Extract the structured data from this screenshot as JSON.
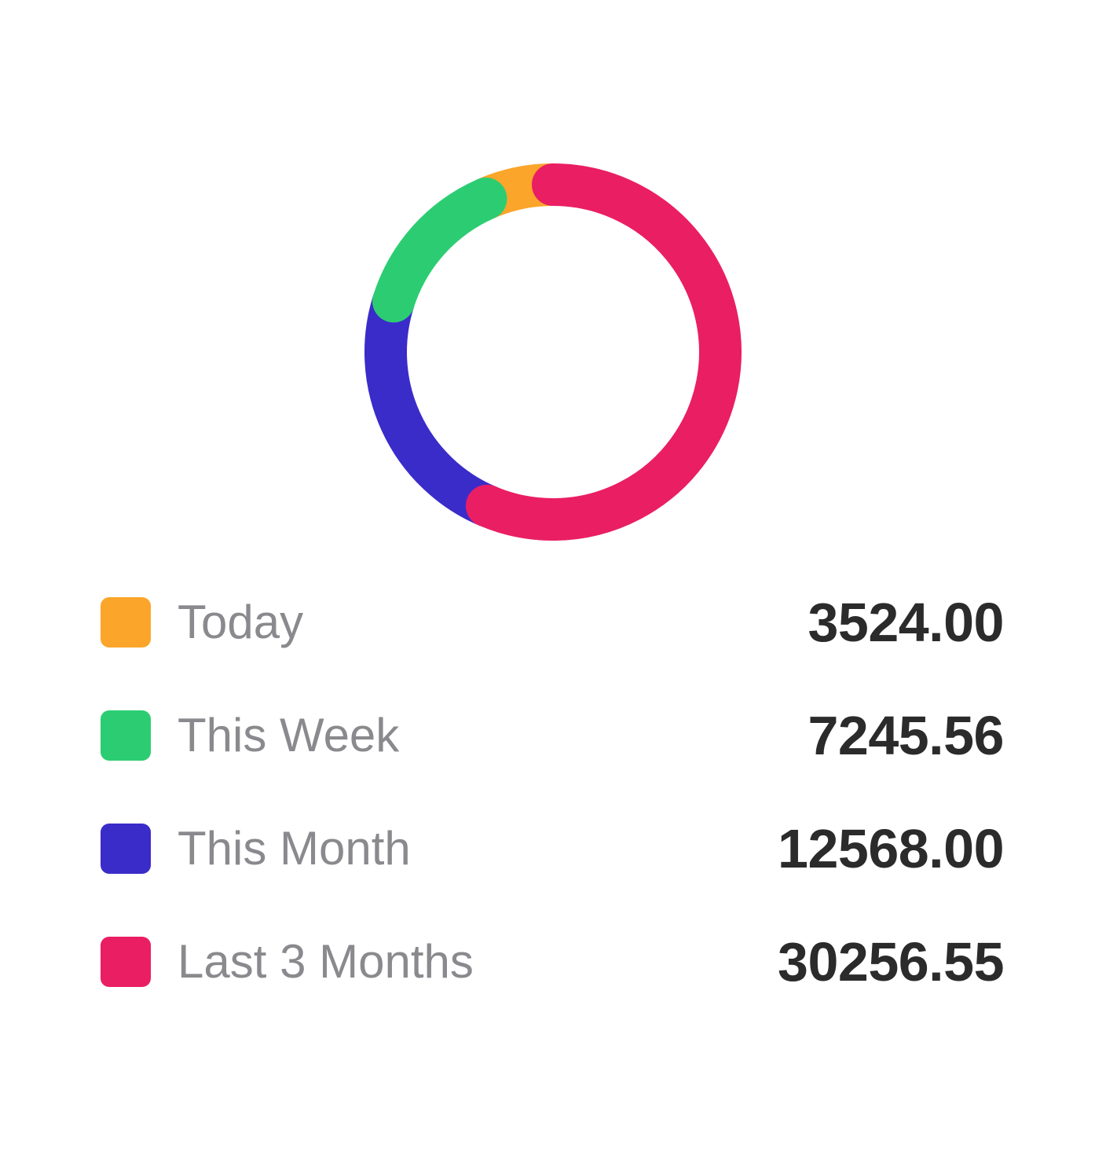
{
  "chart_data": {
    "type": "pie",
    "style": "donut",
    "categories": [
      "Today",
      "This Week",
      "This Month",
      "Last 3 Months"
    ],
    "values": [
      3524.0,
      7245.56,
      12568.0,
      30256.55
    ],
    "value_labels": [
      "3524.00",
      "7245.56",
      "12568.00",
      "30256.55"
    ],
    "colors": [
      "#fba52b",
      "#2ccd72",
      "#3a2cc9",
      "#ea1e63"
    ],
    "title": "",
    "legend_position": "bottom"
  }
}
